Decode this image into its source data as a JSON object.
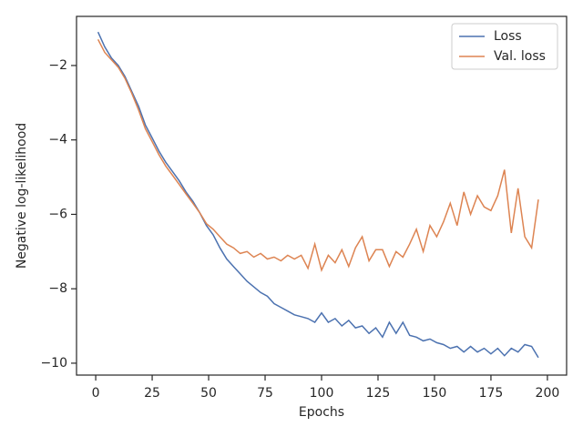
{
  "chart_data": {
    "type": "line",
    "xlabel": "Epochs",
    "ylabel": "Negative log-likelihood",
    "x": [
      1,
      4,
      7,
      10,
      13,
      16,
      19,
      22,
      25,
      28,
      31,
      34,
      37,
      40,
      43,
      46,
      49,
      52,
      55,
      58,
      61,
      64,
      67,
      70,
      73,
      76,
      79,
      82,
      85,
      88,
      91,
      94,
      97,
      100,
      103,
      106,
      109,
      112,
      115,
      118,
      121,
      124,
      127,
      130,
      133,
      136,
      139,
      142,
      145,
      148,
      151,
      154,
      157,
      160,
      163,
      166,
      169,
      172,
      175,
      178,
      181,
      184,
      187,
      190,
      193,
      196
    ],
    "series": [
      {
        "name": "Loss",
        "color": "#4c72b0",
        "values": [
          -1.1,
          -1.5,
          -1.8,
          -2.0,
          -2.3,
          -2.7,
          -3.1,
          -3.6,
          -3.95,
          -4.3,
          -4.6,
          -4.85,
          -5.1,
          -5.4,
          -5.65,
          -5.95,
          -6.3,
          -6.55,
          -6.9,
          -7.2,
          -7.4,
          -7.6,
          -7.8,
          -7.95,
          -8.1,
          -8.2,
          -8.4,
          -8.5,
          -8.6,
          -8.7,
          -8.75,
          -8.8,
          -8.9,
          -8.65,
          -8.9,
          -8.8,
          -9.0,
          -8.85,
          -9.05,
          -9.0,
          -9.2,
          -9.05,
          -9.3,
          -8.9,
          -9.2,
          -8.9,
          -9.25,
          -9.3,
          -9.4,
          -9.35,
          -9.45,
          -9.5,
          -9.6,
          -9.55,
          -9.7,
          -9.55,
          -9.7,
          -9.6,
          -9.75,
          -9.6,
          -9.8,
          -9.6,
          -9.7,
          -9.5,
          -9.55,
          -9.85
        ]
      },
      {
        "name": "Val. loss",
        "color": "#dd8452",
        "values": [
          -1.3,
          -1.65,
          -1.85,
          -2.05,
          -2.35,
          -2.75,
          -3.2,
          -3.7,
          -4.05,
          -4.4,
          -4.7,
          -4.95,
          -5.2,
          -5.45,
          -5.7,
          -5.95,
          -6.25,
          -6.4,
          -6.6,
          -6.8,
          -6.9,
          -7.05,
          -7.0,
          -7.15,
          -7.05,
          -7.2,
          -7.15,
          -7.25,
          -7.1,
          -7.2,
          -7.1,
          -7.45,
          -6.8,
          -7.5,
          -7.1,
          -7.3,
          -6.95,
          -7.4,
          -6.9,
          -6.6,
          -7.25,
          -6.95,
          -6.95,
          -7.4,
          -7.0,
          -7.15,
          -6.8,
          -6.4,
          -7.0,
          -6.3,
          -6.6,
          -6.2,
          -5.7,
          -6.3,
          -5.4,
          -6.0,
          -5.5,
          -5.8,
          -5.9,
          -5.5,
          -4.8,
          -6.5,
          -5.3,
          -6.6,
          -6.9,
          -5.6
        ]
      }
    ],
    "xlim": [
      -8.5,
      208.5
    ],
    "xticks": [
      0,
      25,
      50,
      75,
      100,
      125,
      150,
      175,
      200
    ],
    "ylim": [
      -10.32,
      -0.68
    ],
    "yticks": [
      {
        "value": -10,
        "label": "−10"
      },
      {
        "value": -8,
        "label": "−8"
      },
      {
        "value": -6,
        "label": "−6"
      },
      {
        "value": -4,
        "label": "−4"
      },
      {
        "value": -2,
        "label": "−2"
      }
    ],
    "legend": "upper right",
    "grid": false
  }
}
